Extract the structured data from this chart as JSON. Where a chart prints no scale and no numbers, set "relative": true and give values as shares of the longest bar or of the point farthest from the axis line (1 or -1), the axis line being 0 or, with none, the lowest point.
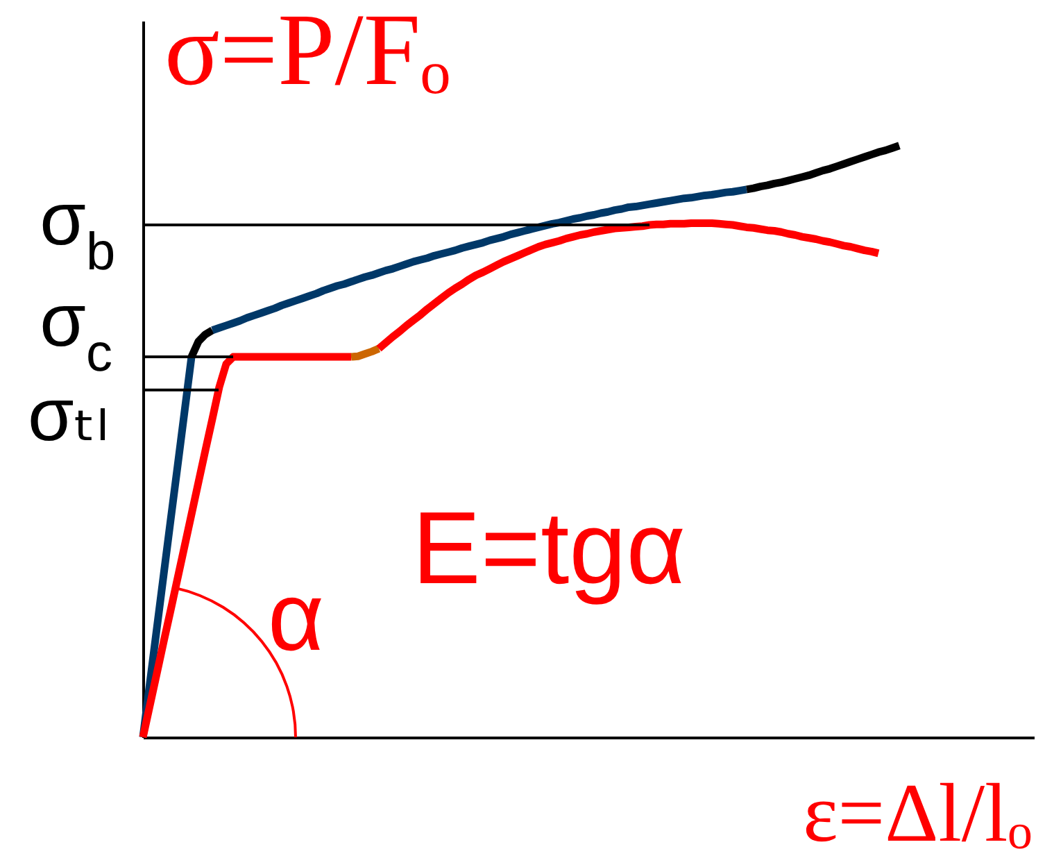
{
  "chart_data": {
    "type": "line",
    "relative": true,
    "ylabel": "σ=P/Fₒ",
    "xlabel": "ε=Δl/lₒ",
    "categories": [
      null,
      null,
      null,
      null,
      null,
      null,
      null,
      null,
      null,
      null,
      null,
      null,
      null,
      null,
      null,
      null,
      null,
      null,
      null,
      null,
      null,
      null,
      null,
      null,
      null,
      null,
      null,
      null,
      null,
      null,
      null,
      null,
      null,
      null,
      null,
      null,
      null,
      null,
      null,
      null,
      null,
      null,
      null,
      null,
      null,
      null,
      null,
      null,
      null,
      null,
      null,
      null,
      null,
      null,
      null,
      null,
      null,
      null,
      null,
      null,
      null,
      null,
      null,
      null,
      null,
      null,
      null,
      null,
      null,
      null,
      null,
      null,
      null,
      null,
      null,
      null,
      null,
      null,
      null,
      null,
      null,
      null,
      null,
      null,
      null,
      null,
      null,
      null,
      null,
      null,
      null,
      null,
      null,
      null,
      null,
      null,
      null,
      null,
      null,
      null,
      null,
      null,
      null,
      null,
      null,
      null,
      null,
      null,
      null,
      null
    ],
    "series": [
      {
        "color": "#003868",
        "values": [
          0,
          0.092,
          0.184,
          0.276,
          0.368,
          0.459,
          0.551,
          0.643,
          null,
          null,
          null,
          null,
          null,
          null,
          null,
          null,
          null,
          null,
          null,
          null,
          null,
          null,
          null,
          null,
          null,
          null,
          null,
          null,
          null,
          null,
          null,
          null,
          null,
          null,
          null,
          null,
          null,
          null,
          null,
          null,
          null,
          null,
          null,
          null,
          null,
          null,
          null,
          null,
          null,
          null,
          null,
          null,
          null,
          null,
          null,
          null,
          null,
          null,
          null,
          null,
          null,
          null,
          null,
          null,
          null,
          null,
          null,
          null,
          null,
          null,
          null,
          null,
          null,
          null,
          null,
          null,
          null,
          null,
          null,
          null,
          null,
          null,
          null,
          null,
          null,
          null,
          null,
          null,
          null,
          null,
          null,
          null,
          null,
          null,
          null,
          null,
          null,
          null,
          null,
          null,
          null,
          null,
          null,
          null,
          null,
          null,
          null,
          null,
          null,
          null
        ]
      },
      {
        "color": "#000000",
        "values": [
          null,
          null,
          null,
          null,
          null,
          null,
          null,
          0.643,
          0.669,
          0.681,
          0.688,
          null,
          null,
          null,
          null,
          null,
          null,
          null,
          null,
          null,
          null,
          null,
          null,
          null,
          null,
          null,
          null,
          null,
          null,
          null,
          null,
          null,
          null,
          null,
          null,
          null,
          null,
          null,
          null,
          null,
          null,
          null,
          null,
          null,
          null,
          null,
          null,
          null,
          null,
          null,
          null,
          null,
          null,
          null,
          null,
          null,
          null,
          null,
          null,
          null,
          null,
          null,
          null,
          null,
          null,
          null,
          null,
          null,
          null,
          null,
          null,
          null,
          null,
          null,
          null,
          null,
          null,
          null,
          null,
          null,
          null,
          null,
          null,
          null,
          null,
          null,
          null,
          null,
          null,
          null,
          null,
          null,
          null,
          null,
          null,
          null,
          null,
          null,
          null,
          null,
          null,
          null,
          null,
          null,
          null,
          null,
          null,
          null,
          null,
          null
        ]
      },
      {
        "color": "#003868",
        "values": [
          null,
          null,
          null,
          null,
          null,
          null,
          null,
          null,
          null,
          null,
          0.688,
          0.692,
          0.696,
          0.7,
          0.704,
          0.709,
          0.713,
          0.717,
          0.721,
          0.725,
          0.73,
          0.734,
          0.738,
          0.742,
          0.746,
          0.75,
          0.755,
          0.759,
          0.763,
          0.766,
          0.77,
          0.774,
          0.778,
          0.781,
          0.785,
          0.789,
          0.792,
          0.796,
          0.8,
          0.804,
          0.807,
          0.81,
          0.814,
          0.817,
          0.82,
          0.823,
          0.827,
          0.83,
          0.833,
          0.836,
          0.84,
          0.843,
          0.846,
          0.85,
          0.853,
          0.856,
          0.859,
          0.862,
          0.865,
          0.868,
          0.87,
          0.873,
          0.876,
          0.878,
          0.881,
          0.883,
          0.886,
          0.888,
          0.891,
          0.893,
          0.896,
          0.897,
          0.899,
          0.901,
          0.903,
          0.905,
          0.907,
          0.909,
          0.911,
          0.912,
          0.914,
          0.916,
          0.917,
          0.919,
          0.921,
          0.922,
          0.924,
          0.926,
          null,
          null,
          null,
          null,
          null,
          null,
          null,
          null,
          null,
          null,
          null,
          null,
          null,
          null,
          null,
          null,
          null,
          null,
          null,
          null,
          null,
          null
        ]
      },
      {
        "color": "#000000",
        "values": [
          null,
          null,
          null,
          null,
          null,
          null,
          null,
          null,
          null,
          null,
          null,
          null,
          null,
          null,
          null,
          null,
          null,
          null,
          null,
          null,
          null,
          null,
          null,
          null,
          null,
          null,
          null,
          null,
          null,
          null,
          null,
          null,
          null,
          null,
          null,
          null,
          null,
          null,
          null,
          null,
          null,
          null,
          null,
          null,
          null,
          null,
          null,
          null,
          null,
          null,
          null,
          null,
          null,
          null,
          null,
          null,
          null,
          null,
          null,
          null,
          null,
          null,
          null,
          null,
          null,
          null,
          null,
          null,
          null,
          null,
          null,
          null,
          null,
          null,
          null,
          null,
          null,
          null,
          null,
          null,
          null,
          null,
          null,
          null,
          null,
          null,
          null,
          0.926,
          0.928,
          0.931,
          0.933,
          0.936,
          0.938,
          0.941,
          0.944,
          0.947,
          0.95,
          0.954,
          0.958,
          0.961,
          0.965,
          0.969,
          0.973,
          0.977,
          0.981,
          0.985,
          0.989,
          0.992,
          0.996,
          1.0
        ]
      },
      {
        "color": "#ff0000",
        "values": [
          0,
          0.054,
          0.108,
          0.162,
          0.215,
          0.269,
          0.323,
          0.377,
          0.431,
          0.485,
          0.538,
          0.592,
          0.631,
          0.643,
          0.643,
          0.643,
          0.643,
          0.643,
          0.643,
          0.643,
          0.643,
          0.643,
          0.643,
          0.643,
          0.643,
          0.643,
          0.643,
          0.643,
          0.643,
          0.643,
          0.643,
          null,
          null,
          null,
          null,
          null,
          null,
          null,
          null,
          null,
          null,
          null,
          null,
          null,
          null,
          null,
          null,
          null,
          null,
          null,
          null,
          null,
          null,
          null,
          null,
          null,
          null,
          null,
          null,
          null,
          null,
          null,
          null,
          null,
          null,
          null,
          null,
          null,
          null,
          null,
          null,
          null,
          null,
          null,
          null,
          null,
          null,
          null,
          null,
          null,
          null,
          null,
          null,
          null,
          null,
          null,
          null,
          null,
          null,
          null,
          null,
          null,
          null,
          null,
          null,
          null,
          null,
          null,
          null,
          null,
          null,
          null,
          null,
          null,
          null,
          null,
          null,
          null,
          null,
          null
        ]
      },
      {
        "color": "#cc6600",
        "values": [
          null,
          null,
          null,
          null,
          null,
          null,
          null,
          null,
          null,
          null,
          null,
          null,
          null,
          null,
          null,
          null,
          null,
          null,
          null,
          null,
          null,
          null,
          null,
          null,
          null,
          null,
          null,
          null,
          null,
          null,
          0.643,
          0.644,
          0.648,
          0.652,
          0.657,
          null,
          null,
          null,
          null,
          null,
          null,
          null,
          null,
          null,
          null,
          null,
          null,
          null,
          null,
          null,
          null,
          null,
          null,
          null,
          null,
          null,
          null,
          null,
          null,
          null,
          null,
          null,
          null,
          null,
          null,
          null,
          null,
          null,
          null,
          null,
          null,
          null,
          null,
          null,
          null,
          null,
          null,
          null,
          null,
          null,
          null,
          null,
          null,
          null,
          null,
          null,
          null,
          null,
          null,
          null,
          null,
          null,
          null,
          null,
          null,
          null,
          null,
          null,
          null,
          null,
          null,
          null,
          null,
          null,
          null,
          null,
          null,
          null,
          null,
          null
        ]
      },
      {
        "color": "#ff0000",
        "values": [
          null,
          null,
          null,
          null,
          null,
          null,
          null,
          null,
          null,
          null,
          null,
          null,
          null,
          null,
          null,
          null,
          null,
          null,
          null,
          null,
          null,
          null,
          null,
          null,
          null,
          null,
          null,
          null,
          null,
          null,
          null,
          null,
          null,
          null,
          0.657,
          0.667,
          0.677,
          0.686,
          0.696,
          0.705,
          0.714,
          0.724,
          0.733,
          0.742,
          0.751,
          0.759,
          0.766,
          0.774,
          0.781,
          0.786,
          0.792,
          0.798,
          0.804,
          0.809,
          0.814,
          0.819,
          0.824,
          0.829,
          0.833,
          0.836,
          0.839,
          0.843,
          0.846,
          0.849,
          0.851,
          0.854,
          0.856,
          0.858,
          0.86,
          0.861,
          0.862,
          0.863,
          0.864,
          0.866,
          0.867,
          0.867,
          0.868,
          0.868,
          0.868,
          0.869,
          0.869,
          0.869,
          0.869,
          0.868,
          0.867,
          0.866,
          0.864,
          0.862,
          0.861,
          0.859,
          0.857,
          0.856,
          0.854,
          0.851,
          0.849,
          0.846,
          0.844,
          0.842,
          0.839,
          0.837,
          0.834,
          0.831,
          0.829,
          0.826,
          0.823,
          0.821,
          0.818,
          null,
          null,
          null
        ]
      }
    ],
    "ref_lines": [
      {
        "axis": "y",
        "value": 0.866,
        "label": "σ$_{b}$"
      },
      {
        "axis": "y",
        "value": 0.643,
        "label": "σ$_{c}$"
      },
      {
        "axis": "y",
        "value": 0.587,
        "label": "σₜₗ"
      }
    ],
    "annotations": [
      "E=tgα",
      "α"
    ]
  }
}
